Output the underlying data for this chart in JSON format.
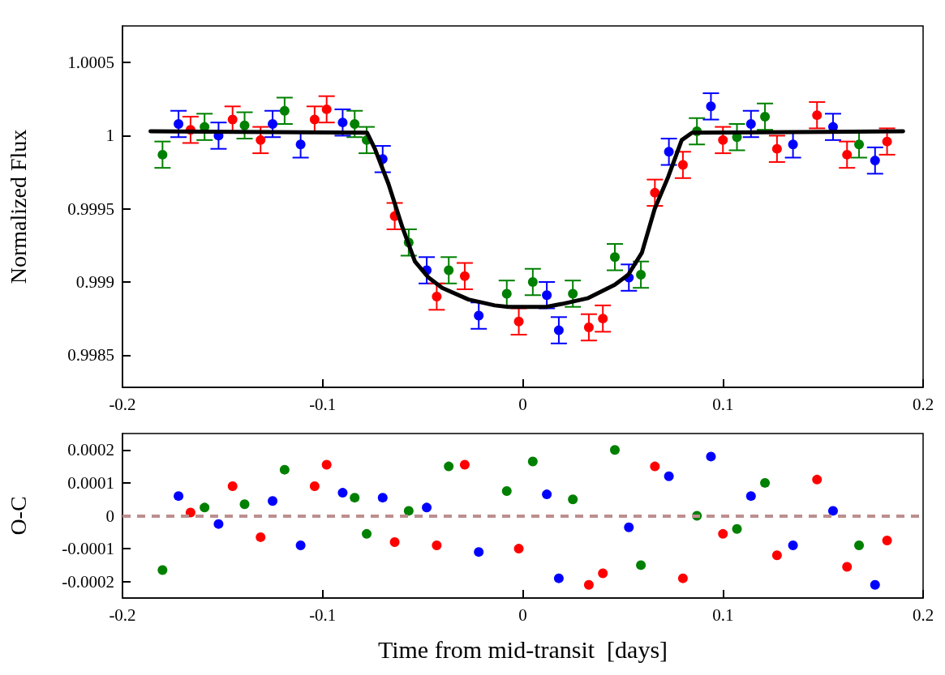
{
  "chart_data": [
    {
      "type": "scatter",
      "ylabel": "Normalized Flux",
      "xlim": [
        -0.2,
        0.2
      ],
      "ylim": [
        0.99828,
        1.00075
      ],
      "xticks": [
        -0.2,
        -0.1,
        0,
        0.1,
        0.2
      ],
      "yticks": [
        0.9985,
        0.999,
        0.9995,
        1,
        1.0005
      ],
      "grid": false,
      "marker": "circle",
      "series": [
        {
          "color": "#008000",
          "x": [
            -0.18,
            -0.159,
            -0.139,
            -0.119,
            -0.084,
            -0.078,
            -0.057,
            -0.037,
            -0.008,
            0.005,
            0.025,
            0.046,
            0.059,
            0.087,
            0.107,
            0.121,
            0.168
          ],
          "values": [
            0.99987,
            1.00006,
            1.00007,
            1.00017,
            1.00008,
            0.99997,
            0.99927,
            0.99908,
            0.99892,
            0.999,
            0.99892,
            0.99917,
            0.99905,
            1.00003,
            0.99999,
            1.00013,
            0.99994
          ],
          "errors": [
            9e-05,
            9e-05,
            9e-05,
            9e-05,
            9e-05,
            9e-05,
            9e-05,
            9e-05,
            9e-05,
            9e-05,
            9e-05,
            9e-05,
            9e-05,
            9e-05,
            9e-05,
            9e-05,
            9e-05
          ]
        },
        {
          "color": "#0000ff",
          "x": [
            -0.172,
            -0.152,
            -0.125,
            -0.111,
            -0.09,
            -0.07,
            -0.048,
            -0.022,
            0.012,
            0.018,
            0.053,
            0.073,
            0.094,
            0.114,
            0.135,
            0.155,
            0.176
          ],
          "values": [
            1.00008,
            1.0,
            1.00008,
            0.99994,
            1.00009,
            0.99984,
            0.99908,
            0.99877,
            0.99891,
            0.99867,
            0.99903,
            0.99989,
            1.0002,
            1.00008,
            0.99994,
            1.00006,
            0.99983
          ],
          "errors": [
            9e-05,
            9e-05,
            9e-05,
            9e-05,
            9e-05,
            9e-05,
            9e-05,
            9e-05,
            9e-05,
            9e-05,
            9e-05,
            9e-05,
            9e-05,
            9e-05,
            9e-05,
            9e-05,
            9e-05
          ]
        },
        {
          "color": "#ff0000",
          "x": [
            -0.166,
            -0.145,
            -0.131,
            -0.104,
            -0.098,
            -0.064,
            -0.043,
            -0.029,
            -0.002,
            0.033,
            0.04,
            0.066,
            0.08,
            0.1,
            0.127,
            0.147,
            0.162,
            0.182
          ],
          "values": [
            1.00004,
            1.00011,
            0.99997,
            1.00011,
            1.00018,
            0.99945,
            0.9989,
            0.99904,
            0.99873,
            0.99869,
            0.99875,
            0.99961,
            0.9998,
            0.99997,
            0.99991,
            1.00014,
            0.99987,
            0.99996
          ],
          "errors": [
            9e-05,
            9e-05,
            9e-05,
            9e-05,
            9e-05,
            9e-05,
            9e-05,
            9e-05,
            9e-05,
            9e-05,
            9e-05,
            9e-05,
            9e-05,
            9e-05,
            9e-05,
            9e-05,
            9e-05,
            9e-05
          ]
        },
        {
          "type": "line",
          "color": "#000000",
          "marker": "none",
          "x": [
            -0.186,
            -0.0778,
            -0.0739,
            -0.0671,
            -0.0603,
            -0.0539,
            -0.0471,
            -0.0403,
            -0.0271,
            -0.014,
            -0.0072,
            0.0116,
            0.0196,
            0.0327,
            0.0459,
            0.0527,
            0.0595,
            0.0659,
            0.0727,
            0.0794,
            0.0846,
            0.19
          ],
          "values": [
            1.00003,
            1.00002,
            0.99991,
            0.99967,
            0.99938,
            0.99914,
            0.99903,
            0.99896,
            0.99888,
            0.99884,
            0.99883,
            0.99883,
            0.99885,
            0.99889,
            0.99898,
            0.99905,
            0.9992,
            0.9995,
            0.99972,
            0.99997,
            1.00002,
            1.00003
          ]
        }
      ]
    },
    {
      "type": "scatter",
      "xlabel": "Time from mid-transit  [days]",
      "ylabel": "O-C",
      "xlim": [
        -0.2,
        0.2
      ],
      "ylim": [
        -0.00025,
        0.00025
      ],
      "xticks": [
        -0.2,
        -0.1,
        0,
        0.1,
        0.2
      ],
      "yticks": [
        -0.0002,
        -0.0001,
        0,
        0.0001,
        0.0002
      ],
      "grid": false,
      "marker": "circle",
      "series": [
        {
          "color": "#008000",
          "x": [
            -0.18,
            -0.159,
            -0.139,
            -0.119,
            -0.084,
            -0.078,
            -0.057,
            -0.037,
            -0.008,
            0.005,
            0.025,
            0.046,
            0.059,
            0.087,
            0.107,
            0.121,
            0.168
          ],
          "values": [
            -0.000165,
            2.5e-05,
            3.5e-05,
            0.00014,
            5.5e-05,
            -5.5e-05,
            1.5e-05,
            0.00015,
            7.5e-05,
            0.000165,
            5e-05,
            0.0002,
            -0.00015,
            0,
            -4e-05,
            0.0001,
            -9e-05
          ]
        },
        {
          "color": "#0000ff",
          "x": [
            -0.172,
            -0.152,
            -0.125,
            -0.111,
            -0.09,
            -0.07,
            -0.048,
            -0.022,
            0.012,
            0.018,
            0.053,
            0.073,
            0.094,
            0.114,
            0.135,
            0.155,
            0.176
          ],
          "values": [
            6e-05,
            -2.5e-05,
            4.5e-05,
            -9e-05,
            7e-05,
            5.5e-05,
            2.5e-05,
            -0.00011,
            6.5e-05,
            -0.00019,
            -3.5e-05,
            0.00012,
            0.00018,
            6e-05,
            -9e-05,
            1.5e-05,
            -0.00021
          ]
        },
        {
          "color": "#ff0000",
          "x": [
            -0.166,
            -0.145,
            -0.131,
            -0.104,
            -0.098,
            -0.064,
            -0.043,
            -0.029,
            -0.002,
            0.033,
            0.04,
            0.066,
            0.08,
            0.1,
            0.127,
            0.147,
            0.162,
            0.182
          ],
          "values": [
            1e-05,
            9e-05,
            -6.5e-05,
            9e-05,
            0.000155,
            -8e-05,
            -9e-05,
            0.000155,
            -0.0001,
            -0.00021,
            -0.000175,
            0.00015,
            -0.00019,
            -5.5e-05,
            -0.00012,
            0.00011,
            -0.000155,
            -7.5e-05
          ]
        }
      ],
      "ref_lines": [
        {
          "axis": "y",
          "value": 0,
          "color": "#bc8f8f",
          "line_style": "dashed"
        }
      ]
    }
  ]
}
